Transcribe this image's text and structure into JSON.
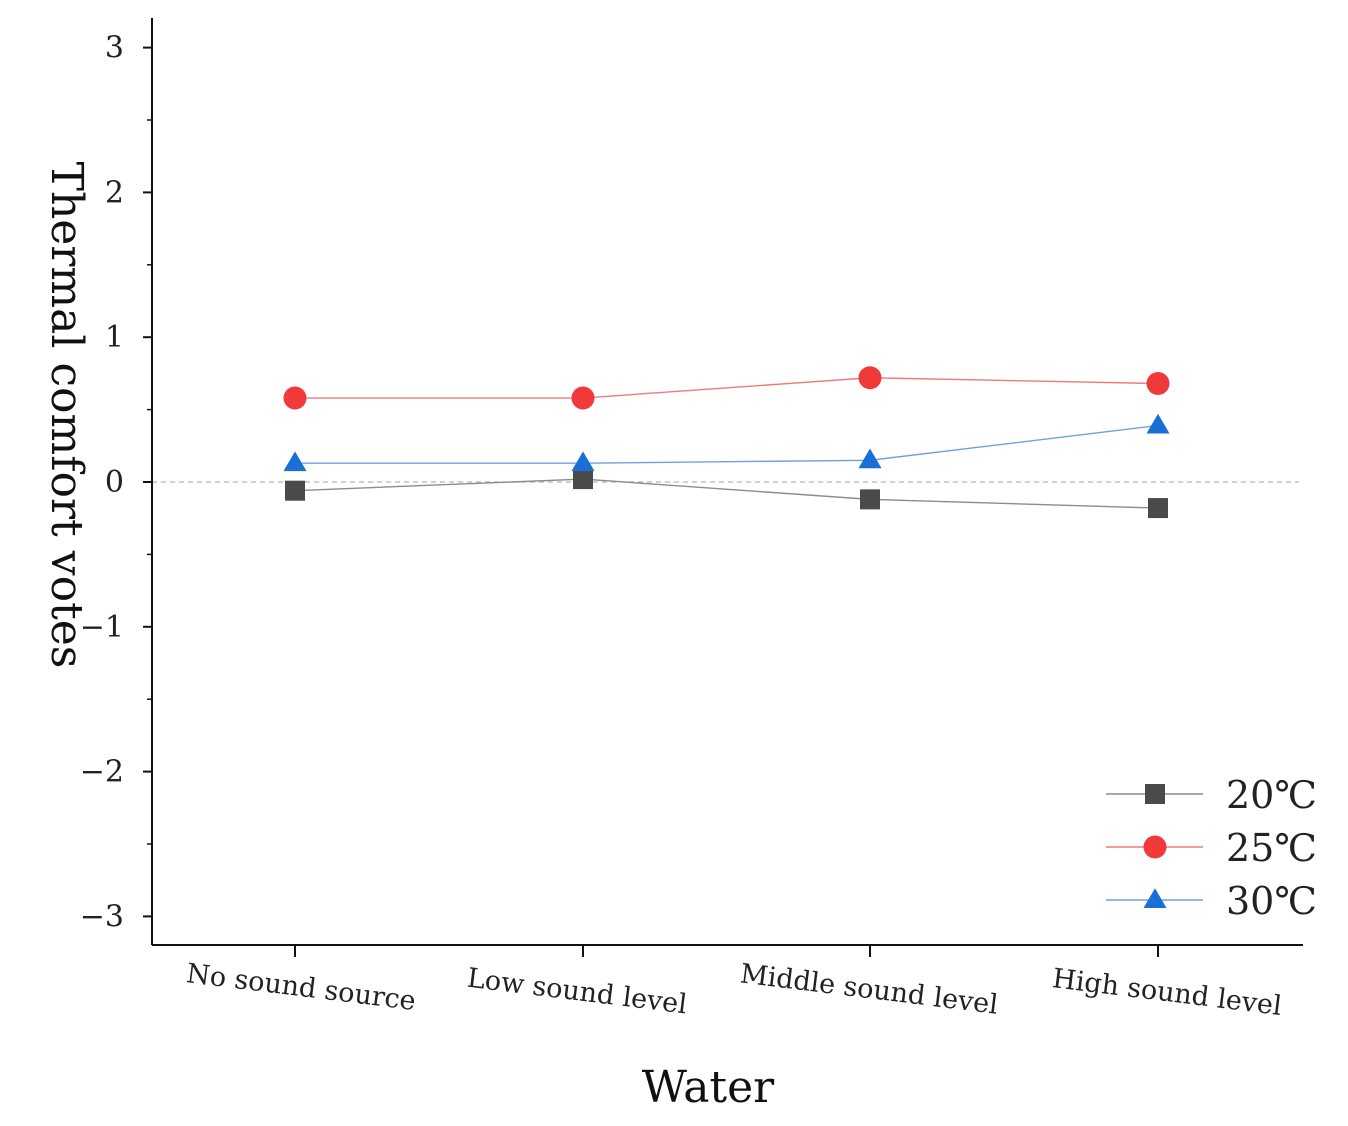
{
  "chart_data": {
    "type": "line",
    "title": "",
    "xlabel": "Water",
    "ylabel": "Thermal comfort votes",
    "categories": [
      "No sound source",
      "Low sound level",
      "Middle sound level",
      "High sound level"
    ],
    "ylim": [
      -3.2,
      3.3
    ],
    "yticks": [
      -3,
      -2,
      -1,
      0,
      1,
      2,
      3
    ],
    "ytick_labels": [
      "−3",
      "−2",
      "−1",
      "0",
      "1",
      "2",
      "3"
    ],
    "reference_line": 0,
    "legend_position": "bottom-right",
    "series": [
      {
        "name": "20℃",
        "marker": "square",
        "color": "#4a4a4a",
        "line_color": "#8c8c8c",
        "values": [
          -0.06,
          0.02,
          -0.12,
          -0.18
        ]
      },
      {
        "name": "25℃",
        "marker": "circle",
        "color": "#f03a3a",
        "line_color": "#f07a7a",
        "values": [
          0.58,
          0.58,
          0.72,
          0.68
        ]
      },
      {
        "name": "30℃",
        "marker": "triangle",
        "color": "#1a6fd6",
        "line_color": "#6fa0e0",
        "values": [
          0.13,
          0.13,
          0.15,
          0.39
        ]
      }
    ]
  }
}
